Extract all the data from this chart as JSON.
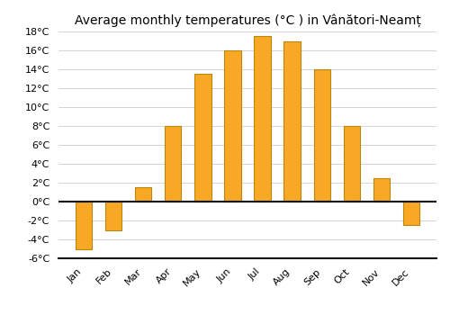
{
  "title": "Average monthly temperatures (°C ) in Vânători-Neamț",
  "months": [
    "Jan",
    "Feb",
    "Mar",
    "Apr",
    "May",
    "Jun",
    "Jul",
    "Aug",
    "Sep",
    "Oct",
    "Nov",
    "Dec"
  ],
  "values": [
    -5.0,
    -3.0,
    1.5,
    8.0,
    13.5,
    16.0,
    17.5,
    17.0,
    14.0,
    8.0,
    2.5,
    -2.5
  ],
  "bar_color": "#f9a825",
  "bar_edgecolor": "#b8860b",
  "background_color": "#ffffff",
  "grid_color": "#cccccc",
  "ylim": [
    -6,
    18
  ],
  "ytick_step": 2,
  "title_fontsize": 10,
  "axis_fontsize": 8,
  "bar_width": 0.55
}
